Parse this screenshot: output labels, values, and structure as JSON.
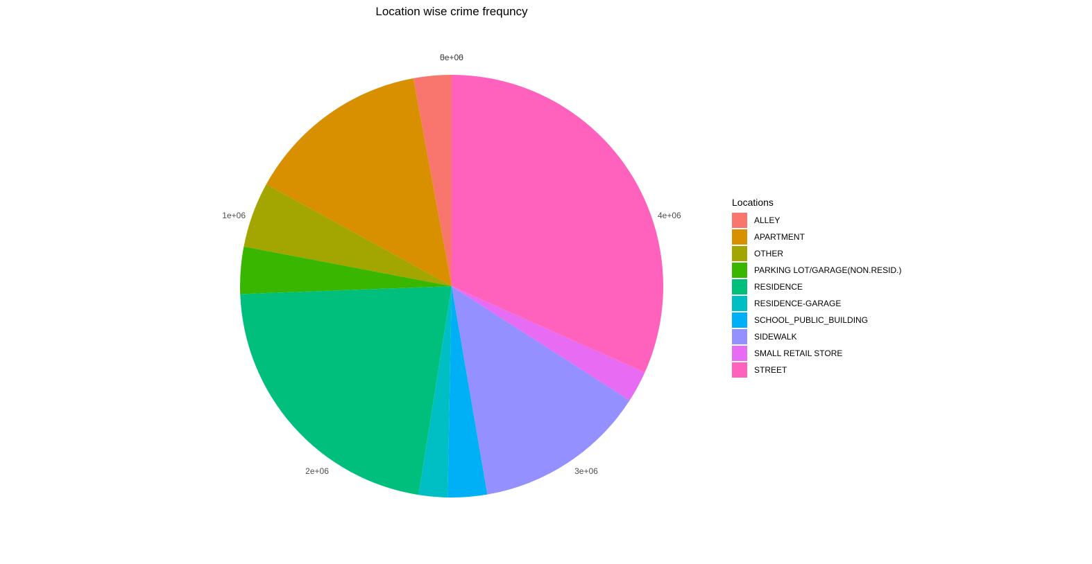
{
  "chart_data": {
    "type": "pie",
    "title": "Location wise crime frequncy",
    "legend": {
      "title": "Locations",
      "position": "right"
    },
    "tick_labels": [
      "5e+06",
      "0e+00",
      "1e+06",
      "2e+06",
      "3e+06",
      "4e+06"
    ],
    "tick_values": [
      5000000,
      0,
      1000000,
      2000000,
      3000000,
      4000000
    ],
    "total": 5000000,
    "categories": [
      "ALLEY",
      "APARTMENT",
      "OTHER",
      "PARKING LOT/GARAGE(NON.RESID.)",
      "RESIDENCE",
      "RESIDENCE-GARAGE",
      "SCHOOL_PUBLIC_BUILDING",
      "SIDEWALK",
      "SMALL RETAIL STORE",
      "STREET"
    ],
    "values": [
      145000,
      705000,
      250000,
      180000,
      1095000,
      110000,
      150000,
      660000,
      120000,
      1585000
    ],
    "colors": [
      "#F8766D",
      "#D89000",
      "#A3A500",
      "#39B600",
      "#00BF7D",
      "#00BFC4",
      "#00B0F6",
      "#9590FF",
      "#E76BF3",
      "#FF62BC"
    ],
    "grid": false
  }
}
